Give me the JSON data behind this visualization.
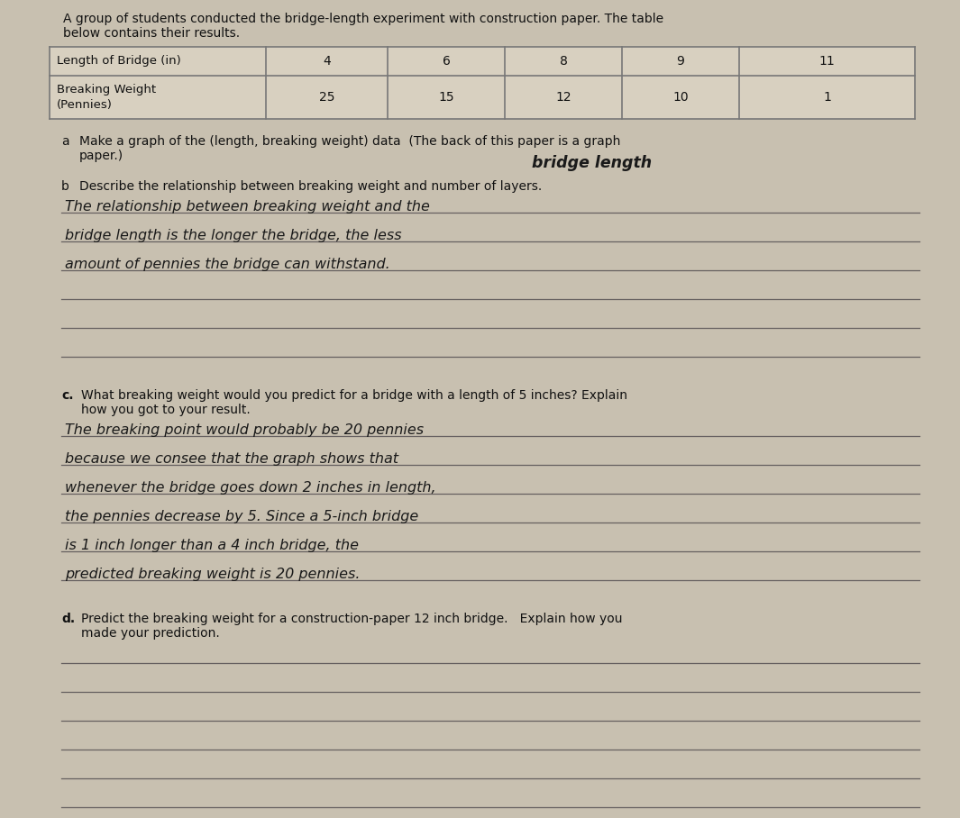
{
  "bg_color": "#c8c0b0",
  "paper_color": "#e2dace",
  "title_text1": "A group of students conducted the bridge-length experiment with construction paper. The table",
  "title_text2": "below contains their results.",
  "table_headers": [
    "Length of Bridge (in)",
    "4",
    "6",
    "8",
    "9",
    "11"
  ],
  "table_row2_label": "Breaking Weight\n(Pennies)",
  "table_row2_values": [
    "25",
    "15",
    "12",
    "10",
    "1"
  ],
  "part_a_bullet": "a",
  "part_a_text": "Make a graph of the (length, breaking weight) data  (The back of this paper is a graph",
  "part_a_text2": "paper.)",
  "part_b_bullet": "b",
  "part_b_label": "Describe the relationship between breaking weight and number of layers.",
  "part_b_handwritten_label": "bridge length",
  "part_b_lines": [
    "The relationship between breaking weight and the",
    "bridge length is the longer the bridge, the less",
    "amount of pennies the bridge can withstand."
  ],
  "part_b_blank_lines": 3,
  "part_c_bullet": "c.",
  "part_c_label1": "What breaking weight would you predict for a bridge with a length of 5 inches? Explain",
  "part_c_label2": "how you got to your result.",
  "part_c_lines": [
    "The breaking point would probably be 20 pennies",
    "because we consee that the graph shows that",
    "whenever the bridge goes down 2 inches in length,",
    "the pennies decrease by 5. Since a 5-inch bridge",
    "is 1 inch longer than a 4 inch bridge, the",
    "predicted breaking weight is 20 pennies."
  ],
  "part_d_bullet": "d.",
  "part_d_label1": "Predict the breaking weight for a construction-paper 12 inch bridge.   Explain how you",
  "part_d_label2": "made your prediction.",
  "part_d_blank_lines": 6,
  "font_size_body": 10.0,
  "font_size_handwritten": 11.5,
  "text_color": "#111111",
  "line_color": "#666060",
  "handwritten_color": "#1a1a1a",
  "table_line_color": "#777777"
}
